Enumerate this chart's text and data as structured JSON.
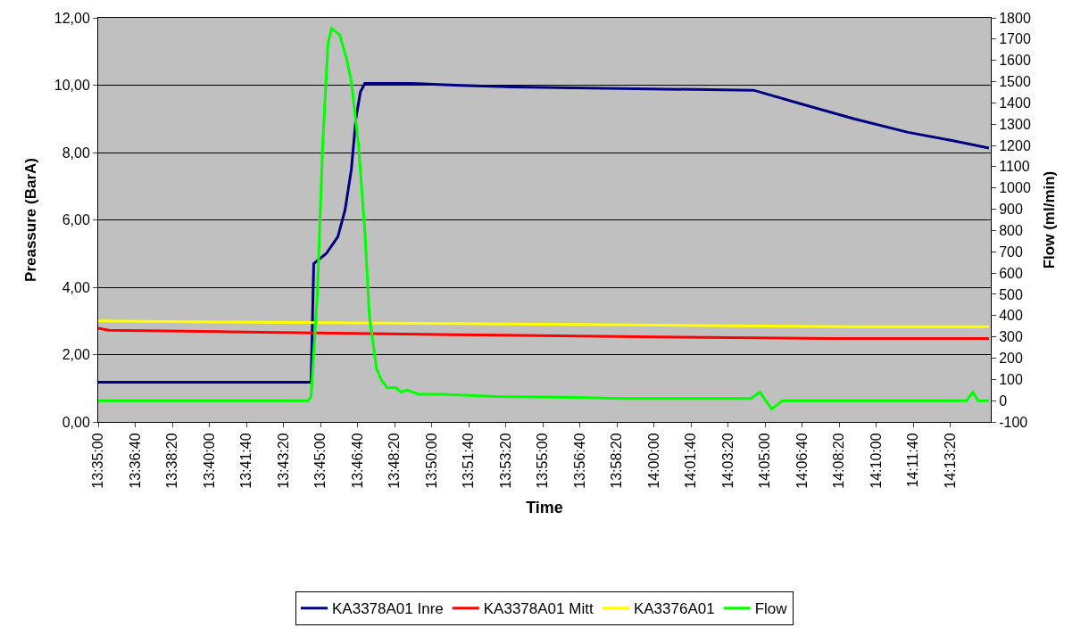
{
  "chart_data": {
    "type": "line",
    "xlabel": "Time",
    "ylabel": "Preassure (BarA)",
    "y2label": "Flow (ml/min)",
    "xlim": [
      13.5833,
      14.2525
    ],
    "xticks": [
      {
        "value": 13.5833,
        "label": "13:35:00"
      },
      {
        "value": 13.6111,
        "label": "13:36:40"
      },
      {
        "value": 13.6389,
        "label": "13:38:20"
      },
      {
        "value": 13.6667,
        "label": "13:40:00"
      },
      {
        "value": 13.6944,
        "label": "13:41:40"
      },
      {
        "value": 13.7222,
        "label": "13:43:20"
      },
      {
        "value": 13.75,
        "label": "13:45:00"
      },
      {
        "value": 13.7778,
        "label": "13:46:40"
      },
      {
        "value": 13.8056,
        "label": "13:48:20"
      },
      {
        "value": 13.8333,
        "label": "13:50:00"
      },
      {
        "value": 13.8611,
        "label": "13:51:40"
      },
      {
        "value": 13.8889,
        "label": "13:53:20"
      },
      {
        "value": 13.9167,
        "label": "13:55:00"
      },
      {
        "value": 13.9444,
        "label": "13:56:40"
      },
      {
        "value": 13.9722,
        "label": "13:58:20"
      },
      {
        "value": 14.0,
        "label": "14:00:00"
      },
      {
        "value": 14.0278,
        "label": "14:01:40"
      },
      {
        "value": 14.0556,
        "label": "14:03:20"
      },
      {
        "value": 14.0833,
        "label": "14:05:00"
      },
      {
        "value": 14.1111,
        "label": "14:06:40"
      },
      {
        "value": 14.1389,
        "label": "14:08:20"
      },
      {
        "value": 14.1667,
        "label": "14:10:00"
      },
      {
        "value": 14.1944,
        "label": "14:11:40"
      },
      {
        "value": 14.2222,
        "label": "14:13:20"
      }
    ],
    "ylim": [
      0,
      12
    ],
    "yticks": [
      {
        "value": 0,
        "label": "0,00"
      },
      {
        "value": 2,
        "label": "2,00"
      },
      {
        "value": 4,
        "label": "4,00"
      },
      {
        "value": 6,
        "label": "6,00"
      },
      {
        "value": 8,
        "label": "8,00"
      },
      {
        "value": 10,
        "label": "10,00"
      },
      {
        "value": 12,
        "label": "12,00"
      }
    ],
    "y2lim": [
      -100,
      1800
    ],
    "y2ticks": [
      -100,
      0,
      100,
      200,
      300,
      400,
      500,
      600,
      700,
      800,
      900,
      1000,
      1100,
      1200,
      1300,
      1400,
      1500,
      1600,
      1700,
      1800
    ],
    "grid": "y",
    "legend": "bottom",
    "marker": "none",
    "line_style": "solid",
    "series": [
      {
        "name": "KA3378A01 Inre",
        "color": "#000080",
        "x": [
          13.5833,
          13.7429,
          13.7449,
          13.7543,
          13.763,
          13.7684,
          13.7731,
          13.7765,
          13.7799,
          13.7832,
          13.8189,
          13.8506,
          13.8943,
          13.9751,
          14.0747,
          14.1097,
          14.1501,
          14.1905,
          14.2242,
          14.2511
        ],
        "values": [
          1.18,
          1.18,
          4.7,
          5.0,
          5.5,
          6.3,
          7.5,
          9.0,
          9.8,
          10.05,
          10.05,
          10.0,
          9.95,
          9.9,
          9.85,
          9.45,
          9.0,
          8.6,
          8.35,
          8.13
        ]
      },
      {
        "name": "KA3378A01 Mitt",
        "color": "#ff0000",
        "x": [
          13.5833,
          13.5914,
          13.6755,
          13.7731,
          13.8708,
          13.9886,
          14.1333,
          14.2511
        ],
        "values": [
          2.78,
          2.72,
          2.68,
          2.63,
          2.58,
          2.53,
          2.48,
          2.48
        ]
      },
      {
        "name": "KA3376A01",
        "color": "#ffff00",
        "x": [
          13.5833,
          13.6722,
          13.827,
          13.9886,
          14.1468,
          14.2511
        ],
        "values": [
          3.0,
          2.97,
          2.93,
          2.88,
          2.83,
          2.83
        ]
      },
      {
        "name": "Flow",
        "color": "#00ff00",
        "axis": "y2",
        "x": [
          13.5833,
          13.7408,
          13.7429,
          13.7476,
          13.7516,
          13.7556,
          13.7583,
          13.7644,
          13.7698,
          13.7731,
          13.7785,
          13.7832,
          13.7866,
          13.792,
          13.7954,
          13.8001,
          13.8068,
          13.8102,
          13.8149,
          13.8236,
          13.8405,
          13.8809,
          13.9414,
          13.9751,
          14.0727,
          14.0794,
          14.0882,
          14.0963,
          14.2343,
          14.239,
          14.243,
          14.2511
        ],
        "values": [
          0,
          0,
          20,
          500,
          1200,
          1680,
          1750,
          1720,
          1600,
          1500,
          1200,
          800,
          400,
          150,
          100,
          60,
          60,
          40,
          50,
          30,
          30,
          20,
          15,
          10,
          10,
          40,
          -40,
          0,
          0,
          40,
          0,
          0
        ]
      }
    ]
  }
}
